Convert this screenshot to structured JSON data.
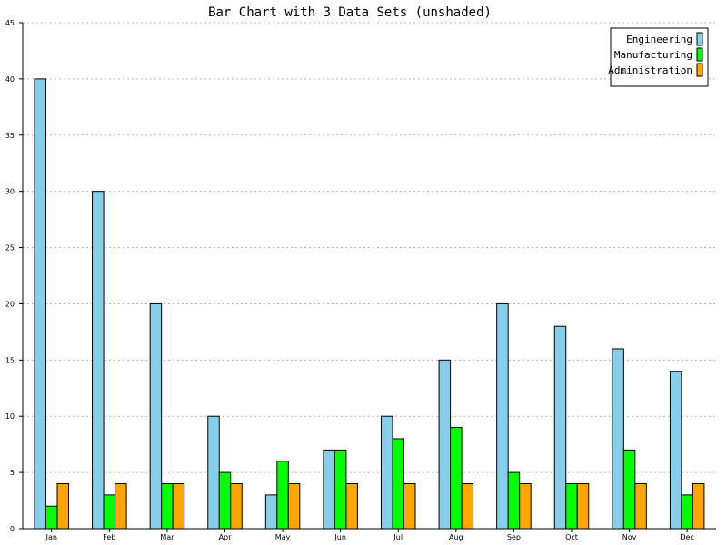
{
  "chart_data": {
    "type": "bar",
    "title": "Bar Chart with 3 Data Sets (unshaded)",
    "xlabel": "",
    "ylabel": "",
    "ylim": [
      0,
      45
    ],
    "yticks": [
      0,
      5,
      10,
      15,
      20,
      25,
      30,
      35,
      40,
      45
    ],
    "grid": true,
    "legend_position": "top-right",
    "categories": [
      "Jan",
      "Feb",
      "Mar",
      "Apr",
      "May",
      "Jun",
      "Jul",
      "Aug",
      "Sep",
      "Oct",
      "Nov",
      "Dec"
    ],
    "series": [
      {
        "name": "Engineering",
        "color": "#87ceeb",
        "values": [
          40,
          30,
          20,
          10,
          3,
          7,
          10,
          15,
          20,
          18,
          16,
          14
        ]
      },
      {
        "name": "Manufacturing",
        "color": "#00ff00",
        "values": [
          2,
          3,
          4,
          5,
          6,
          7,
          8,
          9,
          5,
          4,
          7,
          3
        ]
      },
      {
        "name": "Administration",
        "color": "#ffa500",
        "values": [
          4,
          4,
          4,
          4,
          4,
          4,
          4,
          4,
          4,
          4,
          4,
          4
        ]
      }
    ]
  }
}
